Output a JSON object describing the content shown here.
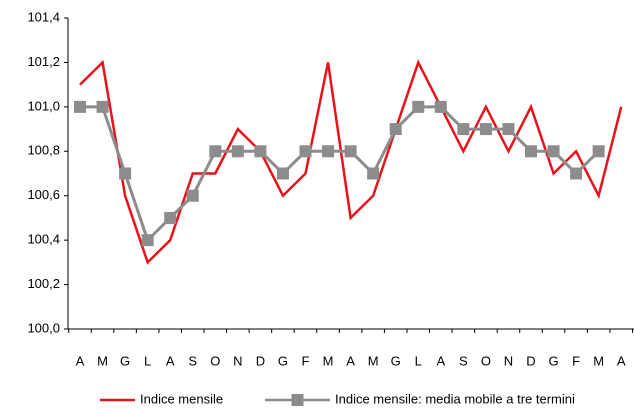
{
  "chart_data": {
    "type": "line",
    "categories": [
      "A",
      "M",
      "G",
      "L",
      "A",
      "S",
      "O",
      "N",
      "D",
      "G",
      "F",
      "M",
      "A",
      "M",
      "G",
      "L",
      "A",
      "S",
      "O",
      "N",
      "D",
      "G",
      "F",
      "M",
      "A"
    ],
    "series": [
      {
        "name": "Indice mensile",
        "color": "#e8121b",
        "values": [
          101.1,
          101.2,
          100.6,
          100.3,
          100.4,
          100.7,
          100.7,
          100.9,
          100.8,
          100.6,
          100.7,
          101.2,
          100.5,
          100.6,
          100.9,
          101.2,
          101.0,
          100.8,
          101.0,
          100.8,
          101.0,
          100.7,
          100.8,
          100.6,
          101.0
        ]
      },
      {
        "name": "Indice mensile: media mobile a tre termini",
        "color": "#8c8c8c",
        "marker": "square",
        "values": [
          101.0,
          101.0,
          100.7,
          100.4,
          100.5,
          100.6,
          100.8,
          100.8,
          100.8,
          100.7,
          100.8,
          100.8,
          100.8,
          100.7,
          100.9,
          101.0,
          101.0,
          100.9,
          100.9,
          100.9,
          100.8,
          100.8,
          100.7,
          100.8,
          null
        ]
      }
    ],
    "ylim": [
      100.0,
      101.4
    ],
    "yticks": [
      {
        "value": 100.0,
        "label": "100,0"
      },
      {
        "value": 100.2,
        "label": "100,2"
      },
      {
        "value": 100.4,
        "label": "100,4"
      },
      {
        "value": 100.6,
        "label": "100,6"
      },
      {
        "value": 100.8,
        "label": "100,8"
      },
      {
        "value": 101.0,
        "label": "101,0"
      },
      {
        "value": 101.2,
        "label": "101,2"
      },
      {
        "value": 101.4,
        "label": "101,4"
      }
    ],
    "grid": false,
    "legend": "bottom"
  }
}
